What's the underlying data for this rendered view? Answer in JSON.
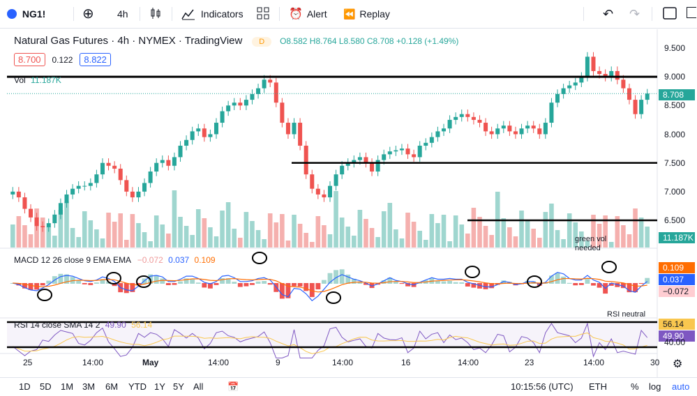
{
  "toolbar": {
    "symbol": "NG1!",
    "interval": "4h",
    "indicators": "Indicators",
    "alert": "Alert",
    "replay": "Replay"
  },
  "legend": {
    "title": "Natural Gas Futures · 4h · NYMEX · TradingView",
    "badge": "D",
    "ohlc": {
      "o": "O8.582",
      "h": "H8.764",
      "l": "L8.580",
      "c": "C8.708",
      "chg": "+0.128 (+1.49%)"
    },
    "bid": "8.700",
    "spread": "0.122",
    "ask": "8.822",
    "vol_label": "Vol",
    "vol_value": "11.187K"
  },
  "macd": {
    "label": "MACD 12 26 close 9 EMA EMA",
    "hist": "−0.072",
    "macd": "0.037",
    "signal": "0.109"
  },
  "rsi": {
    "label": "RSI 14 close SMA 14 2",
    "value": "49.90",
    "sma": "56.14"
  },
  "annotations": {
    "green_vol": "green vol needed",
    "rsi_neutral": "RSI neutral"
  },
  "price_axis": [
    "9.500",
    "9.000",
    "8.500",
    "8.000",
    "7.500",
    "7.000",
    "6.500"
  ],
  "price_tag": "8.708",
  "vol_tag": "11.187K",
  "macd_tags": [
    "0.109",
    "0.037",
    "−0.072"
  ],
  "rsi_tags": [
    "56.14",
    "49.90",
    "40.00"
  ],
  "time_axis": [
    "25",
    "14:00",
    "May",
    "14:00",
    "9",
    "14:00",
    "16",
    "14:00",
    "23",
    "14:00",
    "30"
  ],
  "bottom": {
    "ranges": [
      "1D",
      "5D",
      "1M",
      "3M",
      "6M",
      "YTD",
      "1Y",
      "5Y",
      "All"
    ],
    "clock": "10:15:56 (UTC)",
    "session": "ETH",
    "pct": "%",
    "log": "log",
    "auto": "auto"
  },
  "colors": {
    "up": "#26a69a",
    "down": "#ef5350",
    "macd": "#2962ff",
    "signal": "#ff6d00",
    "rsi": "#7e57c2",
    "rsi_sma": "#f9c74f"
  },
  "chart_data": {
    "type": "candlestick",
    "title": "Natural Gas Futures · 4h · NYMEX",
    "ylim": [
      6.0,
      9.75
    ],
    "series_close": [
      7.0,
      6.9,
      6.7,
      6.55,
      6.4,
      6.38,
      6.45,
      6.6,
      6.8,
      6.95,
      7.05,
      7.1,
      7.1,
      7.15,
      7.3,
      7.5,
      7.45,
      7.4,
      7.2,
      7.0,
      6.9,
      7.0,
      7.15,
      7.35,
      7.5,
      7.55,
      7.45,
      7.6,
      7.8,
      7.9,
      8.05,
      8.1,
      7.95,
      8.0,
      8.2,
      8.4,
      8.5,
      8.55,
      8.5,
      8.6,
      8.7,
      8.8,
      8.95,
      8.9,
      8.55,
      8.2,
      8.0,
      8.2,
      7.8,
      7.3,
      7.05,
      6.95,
      6.9,
      7.1,
      7.3,
      7.45,
      7.5,
      7.55,
      7.6,
      7.5,
      7.35,
      7.55,
      7.65,
      7.7,
      7.72,
      7.75,
      7.65,
      7.6,
      7.8,
      7.85,
      7.95,
      8.05,
      8.1,
      8.25,
      8.3,
      8.35,
      8.3,
      8.25,
      8.2,
      8.05,
      8.0,
      8.1,
      8.15,
      8.05,
      8.0,
      8.1,
      8.15,
      8.1,
      8.0,
      8.2,
      8.55,
      8.7,
      8.8,
      8.85,
      8.9,
      9.0,
      9.35,
      9.1,
      9.05,
      9.0,
      9.1,
      8.95,
      8.8,
      8.6,
      8.35,
      8.6,
      8.708
    ],
    "hlines": [
      9.0,
      7.5,
      6.5
    ],
    "macd_hist_last": -0.072,
    "macd_last": 0.037,
    "signal_last": 0.109,
    "rsi_last": 49.9,
    "rsi_sma_last": 56.14
  }
}
